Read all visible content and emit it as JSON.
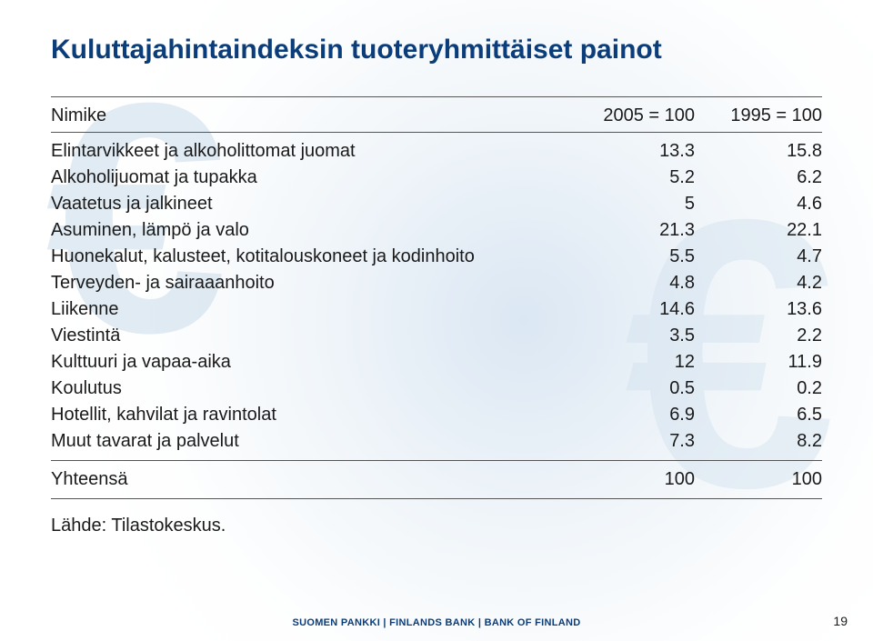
{
  "title": "Kuluttajahintaindeksin tuoteryhmittäiset painot",
  "title_color": "#0a3d7a",
  "title_fontsize": 30,
  "background_color": "#ffffff",
  "watermark_color": "rgba(205,221,236,0.5)",
  "table": {
    "type": "table",
    "header": {
      "c1": "Nimike",
      "c2": "2005 = 100",
      "c3": "1995 = 100"
    },
    "rows": [
      {
        "c1": "Elintarvikkeet ja alkoholittomat juomat",
        "c2": "13.3",
        "c3": "15.8"
      },
      {
        "c1": "Alkoholijuomat ja tupakka",
        "c2": "5.2",
        "c3": "6.2"
      },
      {
        "c1": "Vaatetus ja jalkineet",
        "c2": "5",
        "c3": "4.6"
      },
      {
        "c1": "Asuminen, lämpö ja valo",
        "c2": "21.3",
        "c3": "22.1"
      },
      {
        "c1": "Huonekalut, kalusteet, kotitalouskoneet ja kodinhoito",
        "c2": "5.5",
        "c3": "4.7"
      },
      {
        "c1": "Terveyden- ja sairaaanhoito",
        "c2": "4.8",
        "c3": "4.2"
      },
      {
        "c1": "Liikenne",
        "c2": "14.6",
        "c3": "13.6"
      },
      {
        "c1": "Viestintä",
        "c2": "3.5",
        "c3": "2.2"
      },
      {
        "c1": "Kulttuuri ja vapaa-aika",
        "c2": "12",
        "c3": "11.9"
      },
      {
        "c1": "Koulutus",
        "c2": "0.5",
        "c3": "0.2"
      },
      {
        "c1": "Hotellit, kahvilat ja ravintolat",
        "c2": "6.9",
        "c3": "6.5"
      },
      {
        "c1": "Muut tavarat ja palvelut",
        "c2": "7.3",
        "c3": "8.2"
      }
    ],
    "total": {
      "c1": "Yhteensä",
      "c2": "100",
      "c3": "100"
    },
    "cell_fontsize": 20,
    "cell_color": "#1a1a1a",
    "rule_color": "#555555",
    "col_align": [
      "left",
      "right",
      "right"
    ]
  },
  "source_label": "Lähde: Tilastokeskus.",
  "footer": "SUOMEN PANKKI | FINLANDS BANK | BANK OF FINLAND",
  "footer_color": "#0a3d7a",
  "page_number": "19"
}
